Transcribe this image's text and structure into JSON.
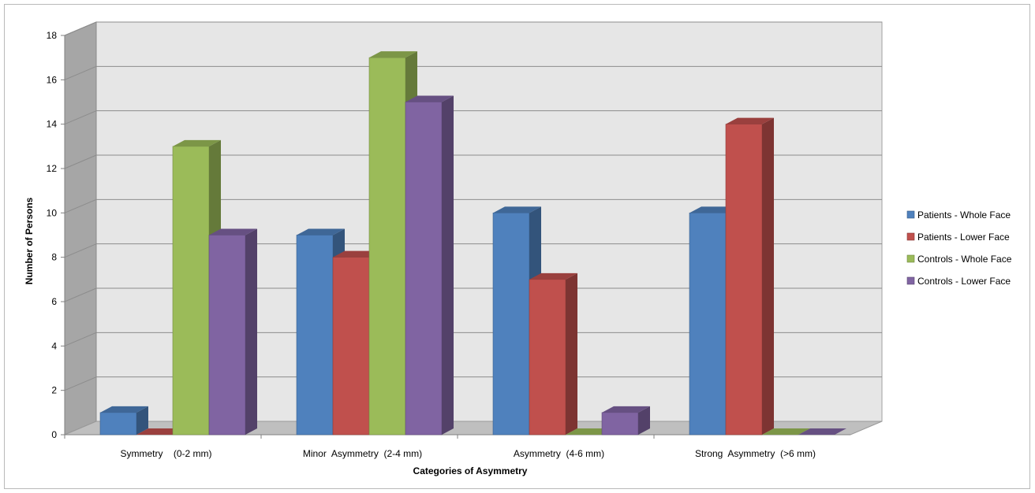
{
  "chart_data": {
    "type": "bar",
    "title": "",
    "xlabel": "Categories of Asymmetry",
    "ylabel": "Number of Persons",
    "ylim": [
      0,
      18
    ],
    "yticks": [
      0,
      2,
      4,
      6,
      8,
      10,
      12,
      14,
      16,
      18
    ],
    "grid": true,
    "legend_position": "right",
    "style": "3d-clustered-column",
    "categories": [
      "Symmetry    (0-2 mm)",
      "Minor  Asymmetry  (2-4 mm)",
      "Asymmetry  (4-6 mm)",
      "Strong  Asymmetry  (>6 mm)"
    ],
    "series": [
      {
        "name": "Patients - Whole Face",
        "color": "#4f81bd",
        "values": [
          1,
          9,
          10,
          10
        ]
      },
      {
        "name": "Patients - Lower Face",
        "color": "#c0504d",
        "values": [
          0,
          8,
          7,
          14
        ]
      },
      {
        "name": "Controls - Whole Face",
        "color": "#9bbb59",
        "values": [
          13,
          17,
          0,
          0
        ]
      },
      {
        "name": "Controls - Lower Face",
        "color": "#8064a2",
        "values": [
          9,
          15,
          1,
          0
        ]
      }
    ]
  }
}
